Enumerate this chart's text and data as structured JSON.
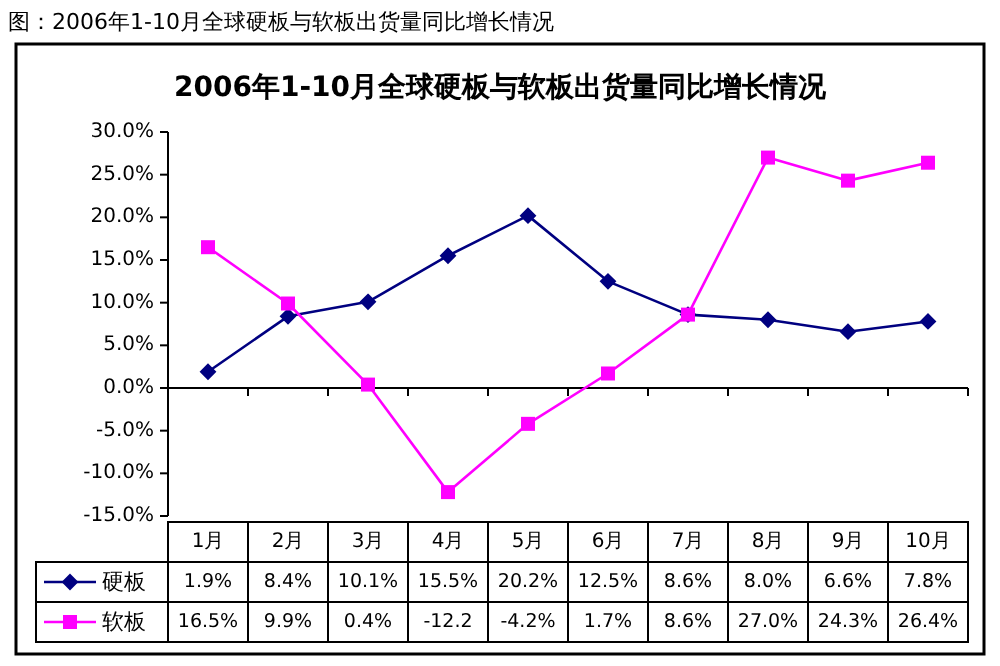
{
  "chart_data": {
    "type": "line",
    "title": "2006年1-10月全球硬板与软板出货量同比增长情况",
    "annotations": [
      "图：2006年1-10月全球硬板与软板出货量同比增长情况"
    ],
    "categories": [
      "1月",
      "2月",
      "3月",
      "4月",
      "5月",
      "6月",
      "7月",
      "8月",
      "9月",
      "10月"
    ],
    "series": [
      {
        "name": "硬板",
        "color": "#000080",
        "marker": "diamond",
        "values": [
          1.9,
          8.4,
          10.1,
          15.5,
          20.2,
          12.5,
          8.6,
          8.0,
          6.6,
          7.8
        ],
        "value_labels": [
          "1.9%",
          "8.4%",
          "10.1%",
          "15.5%",
          "20.2%",
          "12.5%",
          "8.6%",
          "8.0%",
          "6.6%",
          "7.8%"
        ]
      },
      {
        "name": "软板",
        "color": "#ff00ff",
        "marker": "square",
        "values": [
          16.5,
          9.9,
          0.4,
          -12.2,
          -4.2,
          1.7,
          8.6,
          27.0,
          24.3,
          26.4
        ],
        "value_labels": [
          "16.5%",
          "9.9%",
          "0.4%",
          "-12.2",
          "-4.2%",
          "1.7%",
          "8.6%",
          "27.0%",
          "24.3%",
          "26.4%"
        ]
      }
    ],
    "ylim": [
      -15,
      30
    ],
    "yticks": [
      {
        "value": -15,
        "label": "-15.0%"
      },
      {
        "value": -10,
        "label": "-10.0%"
      },
      {
        "value": -5,
        "label": "-5.0%"
      },
      {
        "value": 0,
        "label": "0.0%"
      },
      {
        "value": 5,
        "label": "5.0%"
      },
      {
        "value": 10,
        "label": "10.0%"
      },
      {
        "value": 15,
        "label": "15.0%"
      },
      {
        "value": 20,
        "label": "20.0%"
      },
      {
        "value": 25,
        "label": "25.0%"
      },
      {
        "value": 30,
        "label": "30.0%"
      }
    ],
    "legend": "bottom left",
    "line_style": "solid"
  }
}
